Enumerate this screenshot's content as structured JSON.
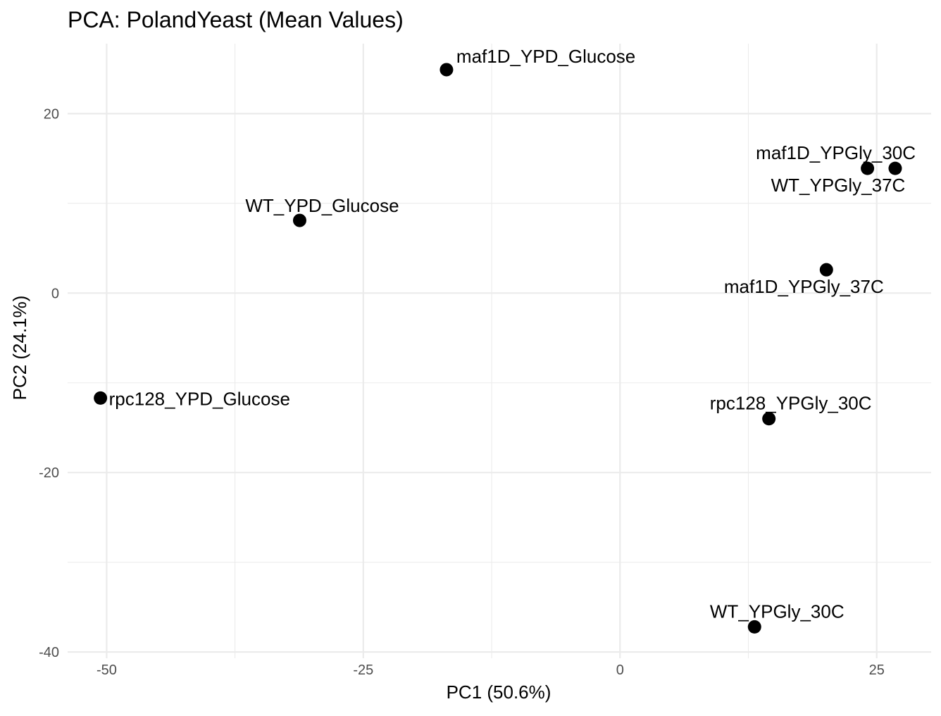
{
  "chart_data": {
    "type": "scatter",
    "title": "PCA: PolandYeast (Mean Values)",
    "xlabel": "PC1 (50.6%)",
    "ylabel": "PC2 (24.1%)",
    "xlim": [
      -53.8,
      30.3
    ],
    "ylim": [
      -40.7,
      27.8
    ],
    "x_ticks": [
      -50,
      -25,
      0,
      25
    ],
    "x_tick_labels": [
      "-50",
      "-25",
      "0",
      "25"
    ],
    "y_ticks": [
      -40,
      -20,
      0,
      20
    ],
    "y_tick_labels": [
      "-40",
      "-20",
      "0",
      "20"
    ],
    "x_minor_ticks": [
      -37.5,
      -12.5,
      12.5
    ],
    "y_minor_ticks": [
      -30,
      -10,
      10
    ],
    "grid": true,
    "legend": "none",
    "point_color": "#000000",
    "points": [
      {
        "label": "maf1D_YPD_Glucose",
        "x": -16.9,
        "y": 24.9
      },
      {
        "label": "maf1D_YPGly_30C",
        "x": 24.1,
        "y": 13.9
      },
      {
        "label": "WT_YPGly_37C",
        "x": 26.8,
        "y": 13.9
      },
      {
        "label": "WT_YPD_Glucose",
        "x": -31.2,
        "y": 8.1
      },
      {
        "label": "maf1D_YPGly_37C",
        "x": 20.1,
        "y": 2.6
      },
      {
        "label": "rpc128_YPD_Glucose",
        "x": -50.6,
        "y": -11.7
      },
      {
        "label": "rpc128_YPGly_30C",
        "x": 14.5,
        "y": -14.0
      },
      {
        "label": "WT_YPGly_30C",
        "x": 13.1,
        "y": -37.2
      }
    ]
  }
}
